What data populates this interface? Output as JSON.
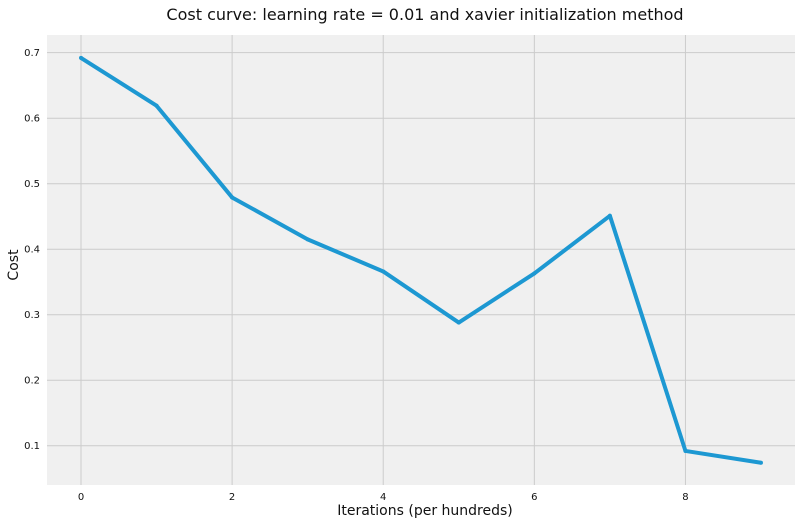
{
  "chart_data": {
    "type": "line",
    "title": "Cost curve: learning rate = 0.01 and xavier initialization method",
    "xlabel": "Iterations (per hundreds)",
    "ylabel": "Cost",
    "x": [
      0,
      1,
      2,
      3,
      4,
      5,
      6,
      7,
      8,
      9
    ],
    "series": [
      {
        "values": [
          0.692,
          0.619,
          0.479,
          0.415,
          0.366,
          0.288,
          0.363,
          0.451,
          0.092,
          0.074
        ]
      }
    ],
    "xticks": [
      0,
      2,
      4,
      6,
      8
    ],
    "yticks": [
      0.1,
      0.2,
      0.3,
      0.4,
      0.5,
      0.6,
      0.7
    ],
    "xlim": [
      -0.45,
      9.45
    ],
    "ylim": [
      0.04,
      0.727
    ],
    "grid": true,
    "legend": "none",
    "colors": {
      "line": "#1d98d2",
      "plot_background": "#f0f0f0",
      "grid": "#cbcbcb"
    }
  }
}
